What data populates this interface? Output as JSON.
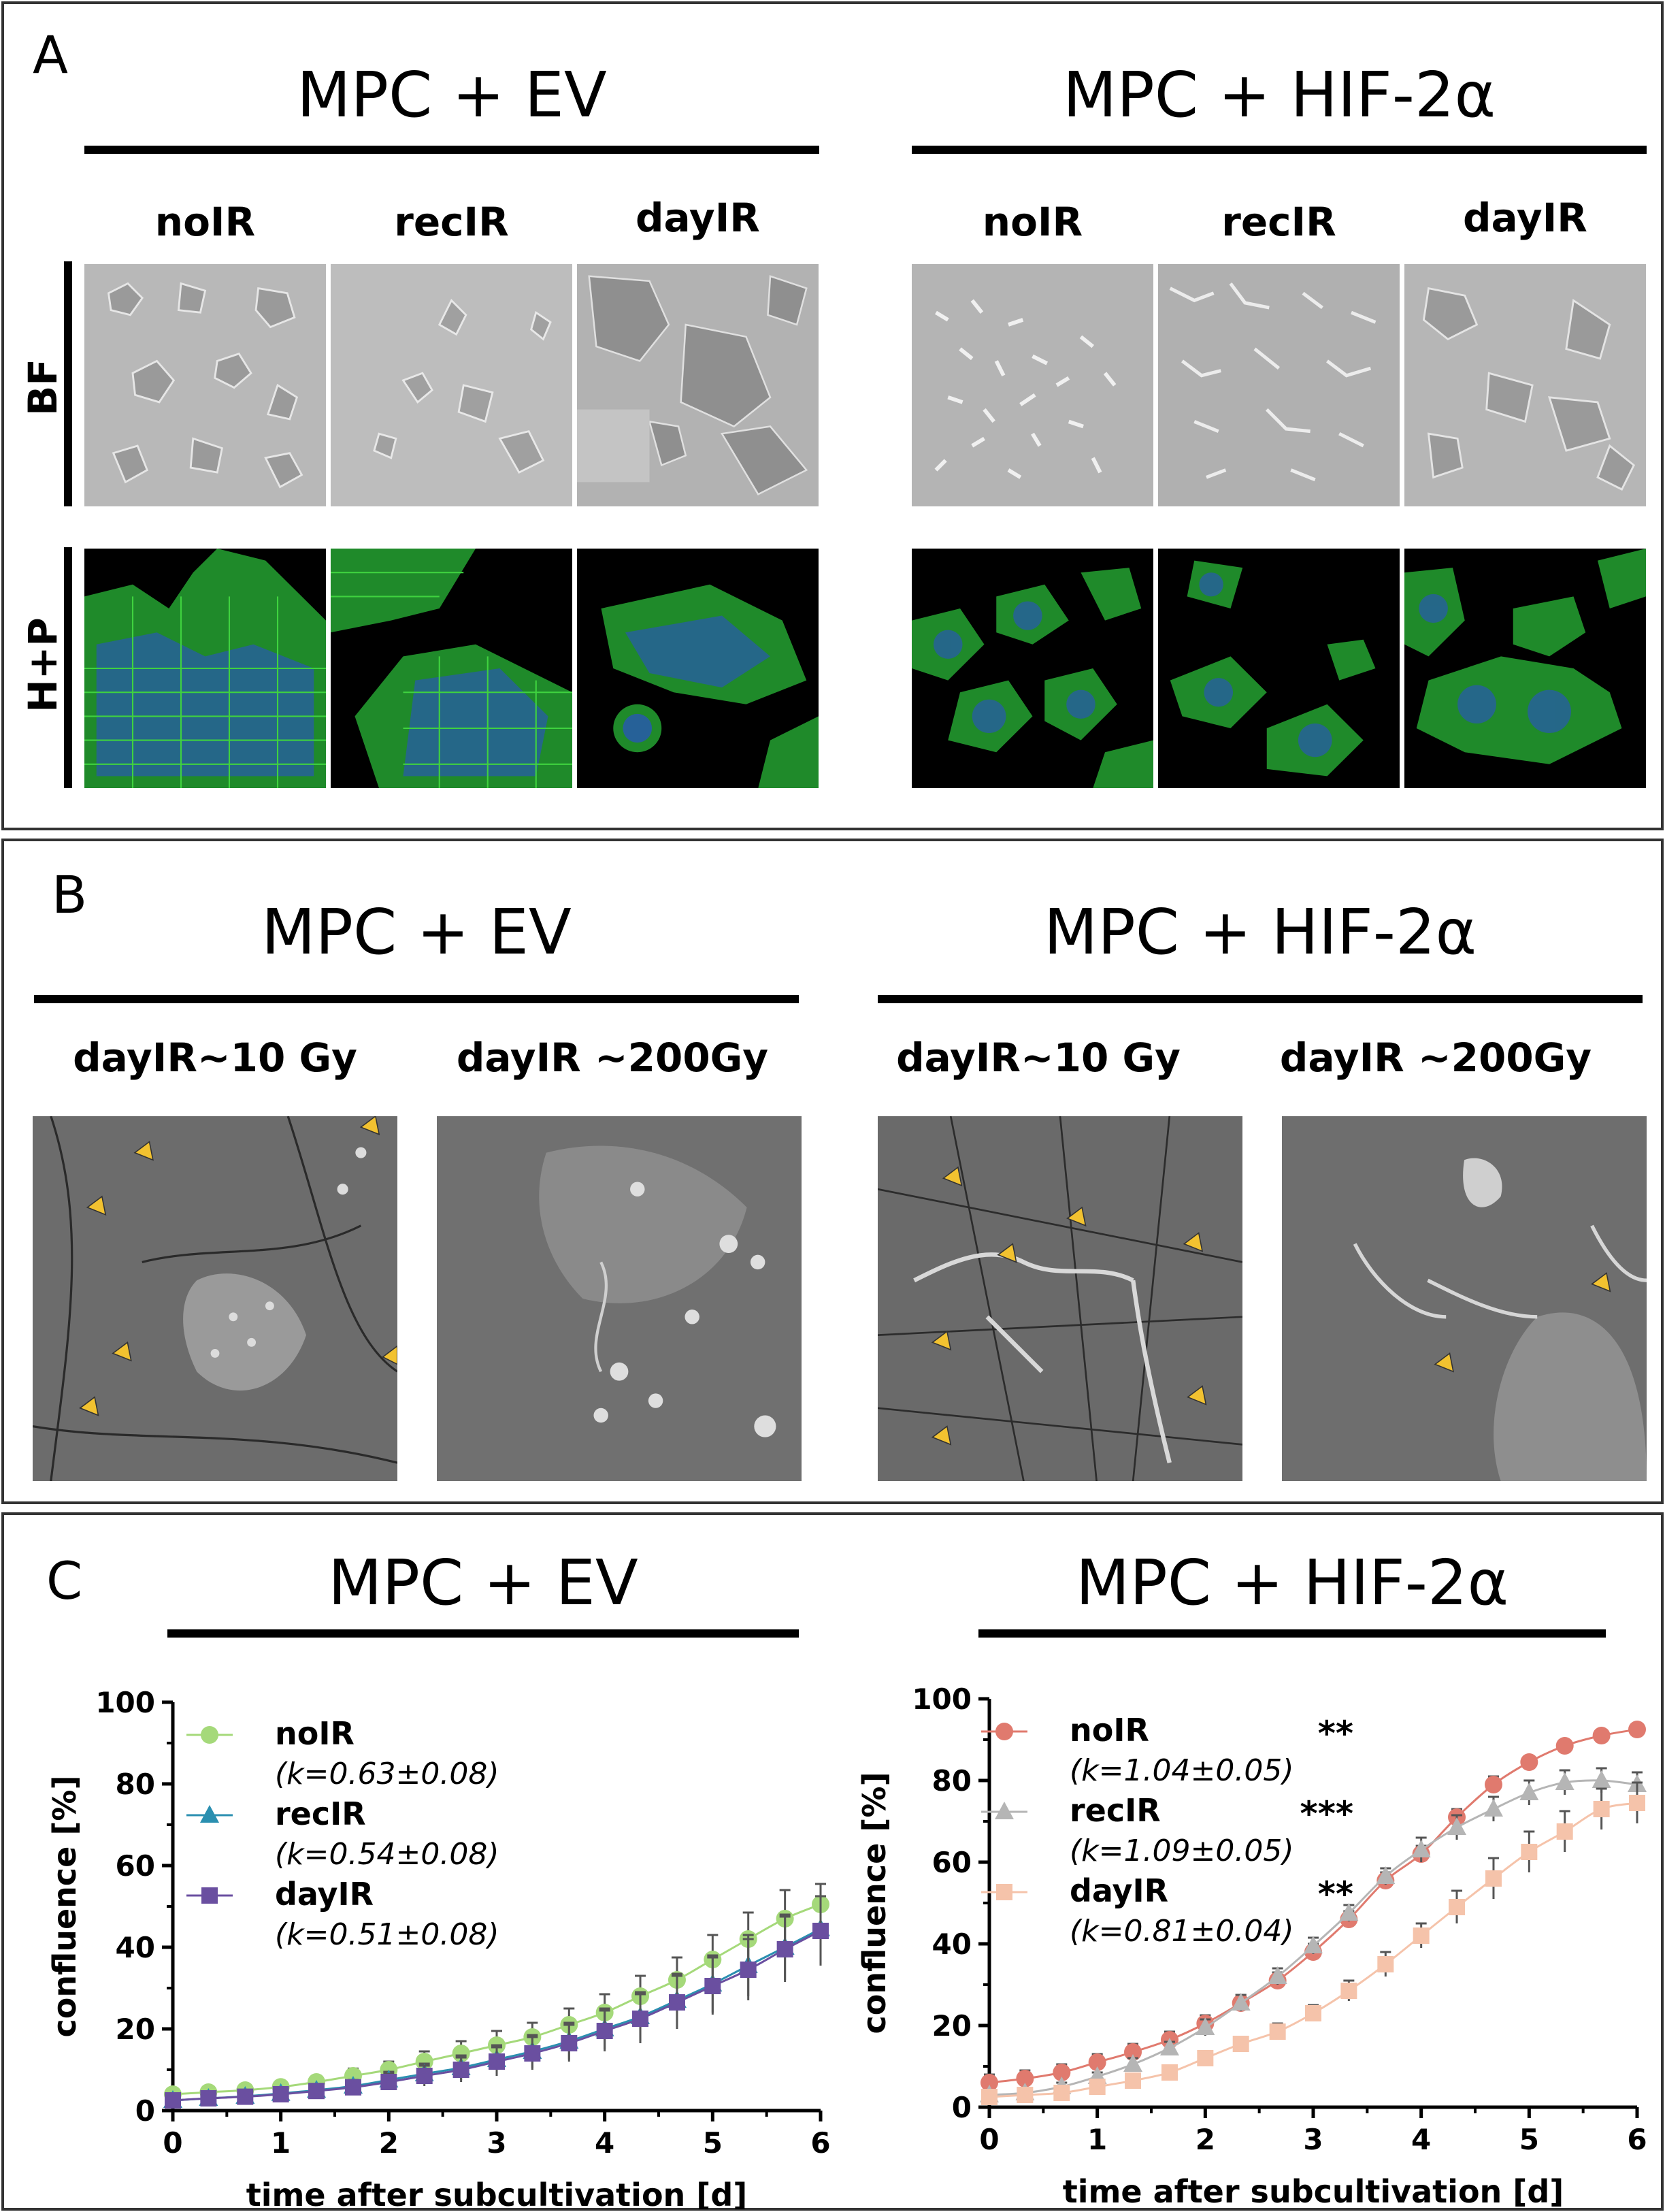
{
  "panelA": {
    "letter": "A",
    "ev_title": "MPC + EV",
    "hif_title": "MPC + HIF-2α",
    "columns": [
      "noIR",
      "recIR",
      "dayIR"
    ],
    "rows": [
      "BF",
      "H+P"
    ]
  },
  "panelB": {
    "letter": "B",
    "ev_title": "MPC + EV",
    "hif_title": "MPC + HIF-2α",
    "columns": [
      "dayIR~10 Gy",
      "dayIR ~200Gy",
      "dayIR~10 Gy",
      "dayIR ~200Gy"
    ]
  },
  "panelC": {
    "letter": "C",
    "ev_title": "MPC + EV",
    "hif_title": "MPC + HIF-2α"
  },
  "colors": {
    "bf_gray": "#b4b4b4",
    "hp_green": "#2fbf2f",
    "hp_blue": "#1f3fd0",
    "arrowhead": "#f2c230",
    "noIR_ev": "#a5d97a",
    "recIR_ev": "#2a8fb0",
    "dayIR_ev": "#6a4fa0",
    "noIR_hif": "#e07a6e",
    "recIR_hif": "#b5b5b5",
    "dayIR_hif": "#f5c3aa"
  },
  "chart_data": [
    {
      "type": "line",
      "title": "MPC + EV",
      "xlabel": "time after subcultivation [d]",
      "ylabel": "confluence [%]",
      "xlim": [
        0,
        6
      ],
      "ylim": [
        0,
        100
      ],
      "xticks": [
        "0",
        "1",
        "2",
        "3",
        "4",
        "5",
        "6"
      ],
      "yticks": [
        "0",
        "20",
        "40",
        "60",
        "80",
        "100"
      ],
      "legend_position": "top-left",
      "x": [
        0,
        0.33,
        0.67,
        1,
        1.33,
        1.67,
        2,
        2.33,
        2.67,
        3,
        3.33,
        3.67,
        4,
        4.33,
        4.67,
        5,
        5.33,
        5.67,
        6
      ],
      "series": [
        {
          "name": "noIR",
          "k": "(k=0.63±0.08)",
          "marker": "circle",
          "values": [
            4,
            4.5,
            5,
            5.8,
            7,
            8.5,
            10,
            12,
            14,
            16,
            18,
            21,
            24,
            28,
            32,
            37,
            42,
            47,
            50.5
          ],
          "errors": [
            1,
            1,
            1,
            1.2,
            1.5,
            1.8,
            2,
            2.5,
            3,
            3.5,
            3.5,
            4,
            4.5,
            5,
            5.5,
            6,
            6.5,
            7,
            5
          ]
        },
        {
          "name": "recIR",
          "k": "(k=0.54±0.08)",
          "marker": "triangle",
          "values": [
            2.5,
            3,
            3.5,
            4.2,
            5,
            6,
            7.5,
            9,
            10.5,
            12.5,
            14.5,
            17,
            20,
            23,
            27,
            31,
            35.5,
            40,
            44.5
          ],
          "errors": [
            1,
            1,
            1,
            1,
            1.3,
            1.5,
            2,
            2.5,
            3,
            3.5,
            4,
            4.5,
            5,
            6,
            6.5,
            7,
            7.5,
            8,
            8
          ]
        },
        {
          "name": "dayIR",
          "k": "(k=0.51±0.08)",
          "marker": "square",
          "values": [
            2.5,
            3,
            3.4,
            4,
            4.8,
            5.7,
            7,
            8.5,
            10,
            12,
            14,
            16.5,
            19.5,
            22.5,
            26.5,
            30.5,
            34.5,
            39.5,
            44
          ],
          "errors": [
            1,
            1,
            1,
            1,
            1.3,
            1.5,
            2,
            2.5,
            3,
            3.5,
            4,
            4.5,
            5,
            6,
            6.5,
            7,
            7.5,
            8,
            8.5
          ]
        }
      ]
    },
    {
      "type": "line",
      "title": "MPC + HIF-2α",
      "xlabel": "time after subcultivation [d]",
      "ylabel": "confluence [%]",
      "xlim": [
        0,
        6
      ],
      "ylim": [
        0,
        100
      ],
      "xticks": [
        "0",
        "1",
        "2",
        "3",
        "4",
        "5",
        "6"
      ],
      "yticks": [
        "0",
        "20",
        "40",
        "60",
        "80",
        "100"
      ],
      "legend_position": "top-left",
      "x": [
        0,
        0.33,
        0.67,
        1,
        1.33,
        1.67,
        2,
        2.33,
        2.67,
        3,
        3.33,
        3.67,
        4,
        4.33,
        4.67,
        5,
        5.33,
        5.67,
        6
      ],
      "series": [
        {
          "name": "noIR",
          "k": "(k=1.04±0.05)",
          "sig": "**",
          "marker": "circle",
          "values": [
            6,
            7,
            8.5,
            11,
            13.5,
            16.5,
            20.5,
            25.5,
            31,
            38,
            46,
            55.5,
            62,
            71,
            79,
            84.5,
            88.5,
            91,
            92.5
          ],
          "errors": [
            2,
            2,
            2,
            2,
            2,
            2,
            2,
            2,
            2,
            2,
            2,
            2,
            2,
            2,
            2,
            1,
            1,
            1,
            1
          ]
        },
        {
          "name": "recIR",
          "k": "(k=1.09±0.05)",
          "sig": "***",
          "marker": "triangle",
          "values": [
            3,
            3.5,
            5,
            7.5,
            10.5,
            14.5,
            19.5,
            25.5,
            32,
            39.5,
            47.5,
            56.5,
            63,
            68.5,
            73,
            77,
            79.5,
            80,
            79
          ],
          "errors": [
            1,
            1,
            1,
            1,
            1.5,
            1.5,
            2,
            2,
            2,
            2,
            2,
            2,
            3,
            3,
            3,
            3,
            3,
            3,
            3
          ]
        },
        {
          "name": "dayIR",
          "k": "(k=0.81±0.04)",
          "sig": "**",
          "marker": "square",
          "values": [
            2.5,
            3,
            3.5,
            5,
            6.5,
            8.5,
            12,
            15.5,
            18.5,
            23,
            28.5,
            35,
            42,
            49,
            56,
            62.5,
            67.5,
            73,
            74.5
          ],
          "errors": [
            1,
            1,
            1,
            1,
            1,
            1,
            1.5,
            1.5,
            2,
            2,
            2.5,
            3,
            3,
            4,
            5,
            5,
            5,
            5,
            5
          ]
        }
      ]
    }
  ]
}
